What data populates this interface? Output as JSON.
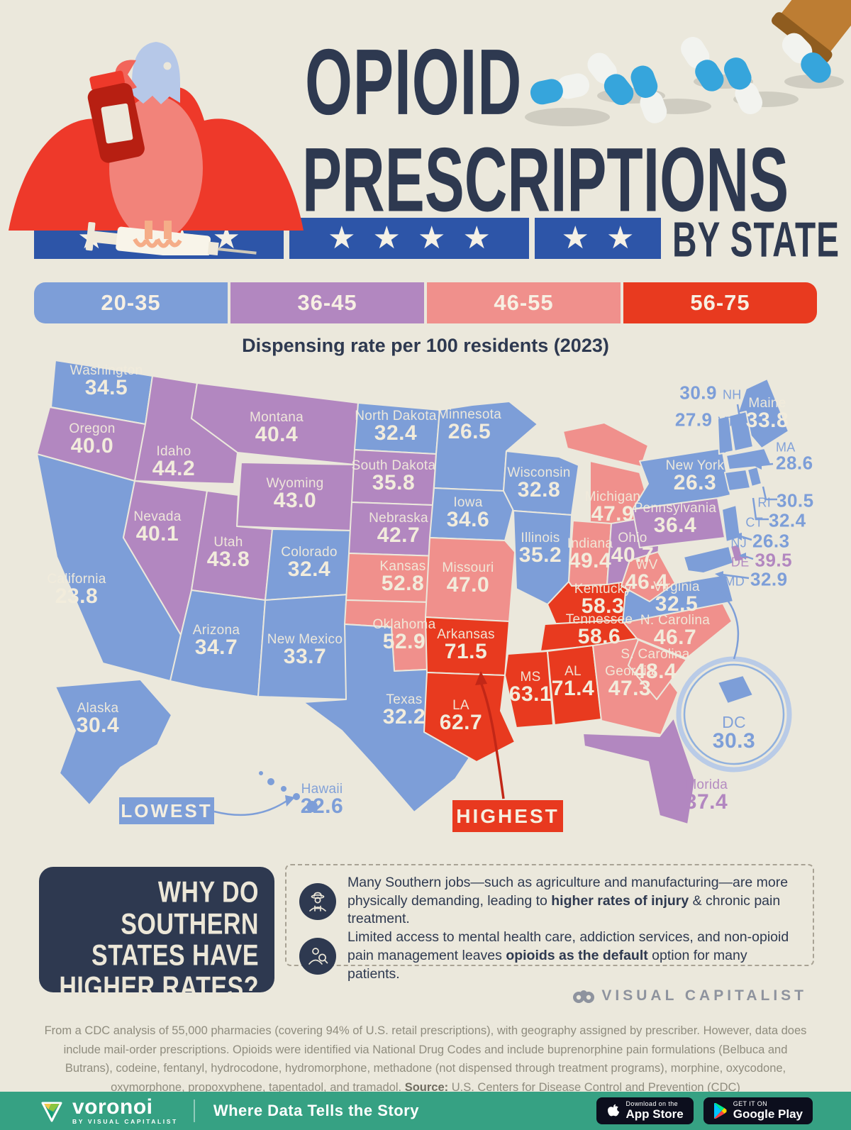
{
  "header": {
    "title_line1": "OPIOID",
    "title_line2": "PRESCRIPTIONS",
    "title_suffix": "BY STATE",
    "subtitle": "Dispensing rate per 100 residents (2023)"
  },
  "banner": {
    "star": "★",
    "segments": [
      4,
      4,
      2
    ]
  },
  "legend": {
    "ranges": [
      {
        "label": "20-35",
        "color": "#7d9ed8"
      },
      {
        "label": "36-45",
        "color": "#b287c0"
      },
      {
        "label": "46-55",
        "color": "#f0908c"
      },
      {
        "label": "56-75",
        "color": "#e83a1f"
      }
    ]
  },
  "map": {
    "lowest_label": "LOWEST",
    "highest_label": "HIGHEST"
  },
  "chart_data": {
    "type": "heatmap",
    "subtype": "us-choropleth-map",
    "title": "Opioid Prescriptions by State",
    "unit": "Dispensing rate per 100 residents (2023)",
    "bins": [
      "20-35",
      "36-45",
      "46-55",
      "56-75"
    ],
    "extremes": {
      "lowest": {
        "state": "Hawaii",
        "value": 22.6
      },
      "highest": {
        "state": "Arkansas",
        "value": 71.5
      }
    },
    "states": [
      {
        "id": "WA",
        "name": "Washington",
        "value": 34.5,
        "range": "20-35"
      },
      {
        "id": "OR",
        "name": "Oregon",
        "value": 40.0,
        "range": "36-45"
      },
      {
        "id": "CA",
        "name": "California",
        "value": 23.8,
        "range": "20-35"
      },
      {
        "id": "NV",
        "name": "Nevada",
        "value": 40.1,
        "range": "36-45"
      },
      {
        "id": "ID",
        "name": "Idaho",
        "value": 44.2,
        "range": "36-45"
      },
      {
        "id": "UT",
        "name": "Utah",
        "value": 43.8,
        "range": "36-45"
      },
      {
        "id": "AZ",
        "name": "Arizona",
        "value": 34.7,
        "range": "20-35"
      },
      {
        "id": "MT",
        "name": "Montana",
        "value": 40.4,
        "range": "36-45"
      },
      {
        "id": "WY",
        "name": "Wyoming",
        "value": 43.0,
        "range": "36-45"
      },
      {
        "id": "CO",
        "name": "Colorado",
        "value": 32.4,
        "range": "20-35"
      },
      {
        "id": "NM",
        "name": "New Mexico",
        "value": 33.7,
        "range": "20-35"
      },
      {
        "id": "AK",
        "name": "Alaska",
        "value": 30.4,
        "range": "20-35"
      },
      {
        "id": "HI",
        "name": "Hawaii",
        "value": 22.6,
        "range": "20-35"
      },
      {
        "id": "ND",
        "name": "North Dakota",
        "value": 32.4,
        "range": "20-35"
      },
      {
        "id": "SD",
        "name": "South Dakota",
        "value": 35.8,
        "range": "36-45"
      },
      {
        "id": "NE",
        "name": "Nebraska",
        "value": 42.7,
        "range": "36-45"
      },
      {
        "id": "KS",
        "name": "Kansas",
        "value": 52.8,
        "range": "46-55"
      },
      {
        "id": "OK",
        "name": "Oklahoma",
        "value": 52.9,
        "range": "46-55"
      },
      {
        "id": "TX",
        "name": "Texas",
        "value": 32.2,
        "range": "20-35"
      },
      {
        "id": "MN",
        "name": "Minnesota",
        "value": 26.5,
        "range": "20-35"
      },
      {
        "id": "IA",
        "name": "Iowa",
        "value": 34.6,
        "range": "20-35"
      },
      {
        "id": "MO",
        "name": "Missouri",
        "value": 47.0,
        "range": "46-55"
      },
      {
        "id": "AR",
        "name": "Arkansas",
        "value": 71.5,
        "range": "56-75"
      },
      {
        "id": "LA",
        "name": "LA",
        "value": 62.7,
        "range": "56-75"
      },
      {
        "id": "WI",
        "name": "Wisconsin",
        "value": 32.8,
        "range": "20-35"
      },
      {
        "id": "IL",
        "name": "Illinois",
        "value": 35.2,
        "range": "20-35"
      },
      {
        "id": "MI",
        "name": "Michigan",
        "value": 47.9,
        "range": "46-55"
      },
      {
        "id": "IN",
        "name": "Indiana",
        "value": 49.4,
        "range": "46-55"
      },
      {
        "id": "OH",
        "name": "Ohio",
        "value": 40.7,
        "range": "36-45"
      },
      {
        "id": "KY",
        "name": "Kentucky",
        "value": 58.3,
        "range": "56-75"
      },
      {
        "id": "TN",
        "name": "Tennessee",
        "value": 58.6,
        "range": "56-75"
      },
      {
        "id": "MS",
        "name": "MS",
        "value": 63.1,
        "range": "56-75"
      },
      {
        "id": "AL",
        "name": "AL",
        "value": 71.4,
        "range": "56-75"
      },
      {
        "id": "GA",
        "name": "Georgia",
        "value": 47.3,
        "range": "46-55"
      },
      {
        "id": "FL",
        "name": "Florida",
        "value": 37.4,
        "range": "36-45"
      },
      {
        "id": "SC",
        "name": "S. Carolina",
        "value": 48.4,
        "range": "46-55"
      },
      {
        "id": "NC",
        "name": "N. Carolina",
        "value": 46.7,
        "range": "46-55"
      },
      {
        "id": "VA",
        "name": "Virginia",
        "value": 32.5,
        "range": "20-35"
      },
      {
        "id": "WV",
        "name": "WV",
        "value": 46.4,
        "range": "46-55"
      },
      {
        "id": "PA",
        "name": "Pennsylvania",
        "value": 36.4,
        "range": "36-45"
      },
      {
        "id": "NY",
        "name": "New York",
        "value": 26.3,
        "range": "20-35"
      },
      {
        "id": "ME",
        "name": "Maine",
        "value": 33.8,
        "range": "20-35"
      },
      {
        "id": "NH",
        "name": "NH",
        "value": 30.9,
        "range": "20-35"
      },
      {
        "id": "VT",
        "name": "VT",
        "value": 27.9,
        "range": "20-35"
      },
      {
        "id": "MA",
        "name": "MA",
        "value": 28.6,
        "range": "20-35"
      },
      {
        "id": "RI",
        "name": "RI",
        "value": 30.5,
        "range": "20-35"
      },
      {
        "id": "CT",
        "name": "CT",
        "value": 32.4,
        "range": "20-35"
      },
      {
        "id": "NJ",
        "name": "NJ",
        "value": 26.3,
        "range": "20-35"
      },
      {
        "id": "DE",
        "name": "DE",
        "value": 39.5,
        "range": "36-45"
      },
      {
        "id": "MD",
        "name": "MD",
        "value": 32.9,
        "range": "20-35"
      },
      {
        "id": "DC",
        "name": "DC",
        "value": 30.3,
        "range": "20-35"
      }
    ]
  },
  "why": {
    "heading": "WHY DO SOUTHERN STATES HAVE HIGHER RATES?",
    "reasons": [
      {
        "pre": "Many Southern jobs—such as agriculture and manufacturing—are more physically demanding, leading to ",
        "bold": "higher rates of injury",
        "post": " & chronic pain treatment."
      },
      {
        "pre": "Limited access to mental health care, addiction services, and non-opioid pain management leaves ",
        "bold": "opioids as the default",
        "post": " option for many patients."
      }
    ]
  },
  "footer": {
    "brand": "VISUAL CAPITALIST",
    "disclaimer": "From a CDC analysis of 55,000 pharmacies (covering 94% of U.S. retail prescriptions), with geography assigned by prescriber. However, data does include mail-order prescriptions. Opioids were identified via National Drug Codes and include buprenorphine pain formulations (Belbuca and Butrans), codeine, fentanyl, hydrocodone, hydromorphone, methadone (not dispensed through treatment programs), morphine, oxycodone, oxymorphone, propoxyphene, tapentadol, and tramadol. ",
    "source_label": "Source:",
    "source": " U.S. Centers for Disease Control and Prevention (CDC)"
  },
  "bottombar": {
    "brand": "voronoi",
    "brand_sub": "BY VISUAL CAPITALIST",
    "tagline": "Where Data Tells the Story",
    "appstore_line1": "Download on the",
    "appstore_line2": "App Store",
    "googleplay_line1": "GET IT ON",
    "googleplay_line2": "Google Play"
  }
}
